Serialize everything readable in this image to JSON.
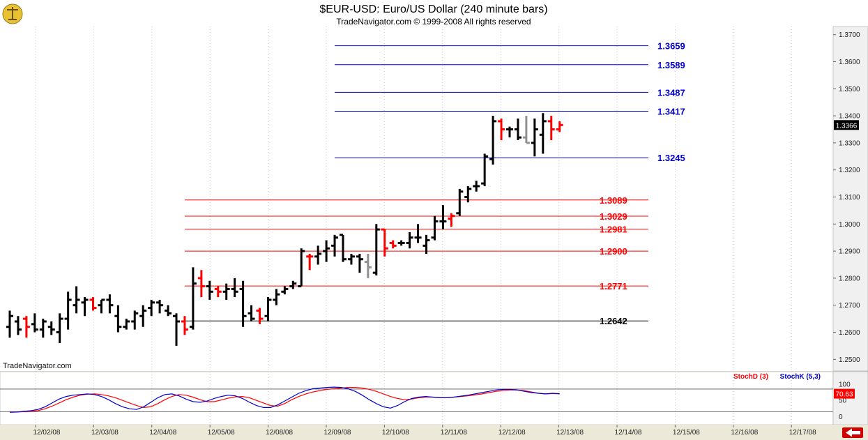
{
  "header": {
    "title": "$EUR-USD:  Euro/US Dollar  (240 minute bars)",
    "copyright": "TradeNavigator.com © 1999-2008 All rights reserved"
  },
  "watermark": "TradeNavigator.com",
  "icons": {
    "logo": "scales-logo-icon",
    "nav_arrow": "left-arrow-icon"
  },
  "colors": {
    "up_bar": "#000000",
    "down_bar": "#FF0000",
    "neutral_bar": "#909090",
    "blue_level": "#0000CC",
    "red_level": "#FF0000",
    "black_level": "#000000",
    "stochD": "#FF0000",
    "stochK": "#0000CC"
  },
  "chart_data": [
    {
      "type": "ohlc",
      "title": "$EUR-USD:  Euro/US Dollar  (240 minute bars)",
      "categories": [
        "12/02/08",
        "12/03/08",
        "12/04/08",
        "12/05/08",
        "12/08/08",
        "12/09/08",
        "12/10/08",
        "12/11/08",
        "12/12/08",
        "12/13/08",
        "12/14/08",
        "12/15/08",
        "12/16/08",
        "12/17/08"
      ],
      "ylim": [
        1.2475,
        1.3725
      ],
      "yticks": [
        "1.2500",
        "1.2600",
        "1.2700",
        "1.2800",
        "1.2900",
        "1.3000",
        "1.3100",
        "1.3200",
        "1.3300",
        "1.3400",
        "1.3500",
        "1.3600",
        "1.3700"
      ],
      "last_price": "1.3366",
      "bars": [
        {
          "o": 1.262,
          "h": 1.268,
          "l": 1.258,
          "c": 1.266,
          "col": "black"
        },
        {
          "o": 1.264,
          "h": 1.266,
          "l": 1.259,
          "c": 1.261,
          "col": "black"
        },
        {
          "o": 1.265,
          "h": 1.266,
          "l": 1.258,
          "c": 1.262,
          "col": "red"
        },
        {
          "o": 1.263,
          "h": 1.267,
          "l": 1.26,
          "c": 1.261,
          "col": "black"
        },
        {
          "o": 1.261,
          "h": 1.265,
          "l": 1.258,
          "c": 1.264,
          "col": "black"
        },
        {
          "o": 1.262,
          "h": 1.264,
          "l": 1.259,
          "c": 1.261,
          "col": "black"
        },
        {
          "o": 1.26,
          "h": 1.267,
          "l": 1.256,
          "c": 1.265,
          "col": "black"
        },
        {
          "o": 1.265,
          "h": 1.275,
          "l": 1.261,
          "c": 1.272,
          "col": "black"
        },
        {
          "o": 1.27,
          "h": 1.277,
          "l": 1.267,
          "c": 1.272,
          "col": "black"
        },
        {
          "o": 1.271,
          "h": 1.273,
          "l": 1.266,
          "c": 1.272,
          "col": "black"
        },
        {
          "o": 1.272,
          "h": 1.273,
          "l": 1.268,
          "c": 1.269,
          "col": "red"
        },
        {
          "o": 1.27,
          "h": 1.272,
          "l": 1.267,
          "c": 1.272,
          "col": "black"
        },
        {
          "o": 1.272,
          "h": 1.274,
          "l": 1.267,
          "c": 1.27,
          "col": "black"
        },
        {
          "o": 1.266,
          "h": 1.27,
          "l": 1.26,
          "c": 1.262,
          "col": "black"
        },
        {
          "o": 1.262,
          "h": 1.265,
          "l": 1.261,
          "c": 1.264,
          "col": "black"
        },
        {
          "o": 1.264,
          "h": 1.268,
          "l": 1.261,
          "c": 1.267,
          "col": "black"
        },
        {
          "o": 1.266,
          "h": 1.27,
          "l": 1.262,
          "c": 1.268,
          "col": "black"
        },
        {
          "o": 1.269,
          "h": 1.272,
          "l": 1.266,
          "c": 1.271,
          "col": "black"
        },
        {
          "o": 1.271,
          "h": 1.272,
          "l": 1.267,
          "c": 1.27,
          "col": "black"
        },
        {
          "o": 1.268,
          "h": 1.27,
          "l": 1.266,
          "c": 1.267,
          "col": "black"
        },
        {
          "o": 1.266,
          "h": 1.267,
          "l": 1.255,
          "c": 1.264,
          "col": "black"
        },
        {
          "o": 1.264,
          "h": 1.266,
          "l": 1.259,
          "c": 1.261,
          "col": "red"
        },
        {
          "o": 1.262,
          "h": 1.284,
          "l": 1.261,
          "c": 1.278,
          "col": "black"
        },
        {
          "o": 1.28,
          "h": 1.283,
          "l": 1.273,
          "c": 1.277,
          "col": "red"
        },
        {
          "o": 1.277,
          "h": 1.279,
          "l": 1.272,
          "c": 1.275,
          "col": "black"
        },
        {
          "o": 1.276,
          "h": 1.277,
          "l": 1.273,
          "c": 1.275,
          "col": "red"
        },
        {
          "o": 1.275,
          "h": 1.278,
          "l": 1.272,
          "c": 1.276,
          "col": "black"
        },
        {
          "o": 1.276,
          "h": 1.28,
          "l": 1.273,
          "c": 1.275,
          "col": "black"
        },
        {
          "o": 1.276,
          "h": 1.279,
          "l": 1.262,
          "c": 1.266,
          "col": "black"
        },
        {
          "o": 1.267,
          "h": 1.27,
          "l": 1.264,
          "c": 1.265,
          "col": "black"
        },
        {
          "o": 1.268,
          "h": 1.269,
          "l": 1.263,
          "c": 1.265,
          "col": "red"
        },
        {
          "o": 1.266,
          "h": 1.273,
          "l": 1.264,
          "c": 1.272,
          "col": "black"
        },
        {
          "o": 1.272,
          "h": 1.276,
          "l": 1.27,
          "c": 1.274,
          "col": "black"
        },
        {
          "o": 1.275,
          "h": 1.277,
          "l": 1.274,
          "c": 1.276,
          "col": "black"
        },
        {
          "o": 1.277,
          "h": 1.279,
          "l": 1.276,
          "c": 1.278,
          "col": "black"
        },
        {
          "o": 1.277,
          "h": 1.291,
          "l": 1.277,
          "c": 1.29,
          "col": "black"
        },
        {
          "o": 1.288,
          "h": 1.289,
          "l": 1.283,
          "c": 1.288,
          "col": "red"
        },
        {
          "o": 1.288,
          "h": 1.292,
          "l": 1.285,
          "c": 1.289,
          "col": "black"
        },
        {
          "o": 1.29,
          "h": 1.294,
          "l": 1.286,
          "c": 1.291,
          "col": "black"
        },
        {
          "o": 1.292,
          "h": 1.296,
          "l": 1.288,
          "c": 1.295,
          "col": "black"
        },
        {
          "o": 1.296,
          "h": 1.296,
          "l": 1.286,
          "c": 1.287,
          "col": "black"
        },
        {
          "o": 1.287,
          "h": 1.289,
          "l": 1.285,
          "c": 1.288,
          "col": "black"
        },
        {
          "o": 1.288,
          "h": 1.289,
          "l": 1.282,
          "c": 1.287,
          "col": "black"
        },
        {
          "o": 1.286,
          "h": 1.289,
          "l": 1.28,
          "c": 1.284,
          "col": "gray"
        },
        {
          "o": 1.282,
          "h": 1.3,
          "l": 1.281,
          "c": 1.298,
          "col": "black"
        },
        {
          "o": 1.298,
          "h": 1.298,
          "l": 1.288,
          "c": 1.291,
          "col": "red"
        },
        {
          "o": 1.293,
          "h": 1.294,
          "l": 1.291,
          "c": 1.292,
          "col": "red"
        },
        {
          "o": 1.293,
          "h": 1.294,
          "l": 1.292,
          "c": 1.293,
          "col": "black"
        },
        {
          "o": 1.293,
          "h": 1.297,
          "l": 1.291,
          "c": 1.295,
          "col": "black"
        },
        {
          "o": 1.295,
          "h": 1.3,
          "l": 1.293,
          "c": 1.295,
          "col": "black"
        },
        {
          "o": 1.292,
          "h": 1.296,
          "l": 1.289,
          "c": 1.294,
          "col": "black"
        },
        {
          "o": 1.295,
          "h": 1.303,
          "l": 1.294,
          "c": 1.301,
          "col": "black"
        },
        {
          "o": 1.301,
          "h": 1.307,
          "l": 1.298,
          "c": 1.301,
          "col": "black"
        },
        {
          "o": 1.302,
          "h": 1.304,
          "l": 1.299,
          "c": 1.303,
          "col": "red"
        },
        {
          "o": 1.304,
          "h": 1.313,
          "l": 1.303,
          "c": 1.312,
          "col": "black"
        },
        {
          "o": 1.31,
          "h": 1.314,
          "l": 1.308,
          "c": 1.313,
          "col": "black"
        },
        {
          "o": 1.314,
          "h": 1.316,
          "l": 1.312,
          "c": 1.314,
          "col": "black"
        },
        {
          "o": 1.315,
          "h": 1.326,
          "l": 1.314,
          "c": 1.325,
          "col": "black"
        },
        {
          "o": 1.324,
          "h": 1.34,
          "l": 1.322,
          "c": 1.338,
          "col": "black"
        },
        {
          "o": 1.338,
          "h": 1.339,
          "l": 1.331,
          "c": 1.335,
          "col": "red"
        },
        {
          "o": 1.335,
          "h": 1.336,
          "l": 1.332,
          "c": 1.335,
          "col": "black"
        },
        {
          "o": 1.335,
          "h": 1.339,
          "l": 1.331,
          "c": 1.332,
          "col": "black"
        },
        {
          "o": 1.332,
          "h": 1.34,
          "l": 1.33,
          "c": 1.33,
          "col": "gray"
        },
        {
          "o": 1.33,
          "h": 1.339,
          "l": 1.325,
          "c": 1.335,
          "col": "black"
        },
        {
          "o": 1.333,
          "h": 1.341,
          "l": 1.326,
          "c": 1.338,
          "col": "black"
        },
        {
          "o": 1.338,
          "h": 1.34,
          "l": 1.331,
          "c": 1.335,
          "col": "red"
        },
        {
          "o": 1.335,
          "h": 1.338,
          "l": 1.334,
          "c": 1.3366,
          "col": "red"
        }
      ],
      "levels": [
        {
          "label": "1.3659",
          "value": 1.3659,
          "color": "blue",
          "start_bar": 40
        },
        {
          "label": "1.3589",
          "value": 1.3589,
          "color": "blue",
          "start_bar": 40
        },
        {
          "label": "1.3487",
          "value": 1.3487,
          "color": "blue",
          "start_bar": 40
        },
        {
          "label": "1.3417",
          "value": 1.3417,
          "color": "blue",
          "start_bar": 40
        },
        {
          "label": "1.3245",
          "value": 1.3245,
          "color": "blue",
          "start_bar": 40
        },
        {
          "label": "1.3089",
          "value": 1.3089,
          "color": "red",
          "start_bar": 22
        },
        {
          "label": "1.3029",
          "value": 1.3029,
          "color": "red",
          "start_bar": 22
        },
        {
          "label": "1.2981",
          "value": 1.2981,
          "color": "red",
          "start_bar": 22
        },
        {
          "label": "1.2900",
          "value": 1.29,
          "color": "red",
          "start_bar": 22
        },
        {
          "label": "1.2771",
          "value": 1.2771,
          "color": "red",
          "start_bar": 22
        },
        {
          "label": "1.2642",
          "value": 1.2642,
          "color": "black",
          "start_bar": 22
        }
      ]
    },
    {
      "type": "line",
      "title": "Stochastic",
      "ylim": [
        -10,
        115
      ],
      "yticks": [
        "100",
        "50",
        "0"
      ],
      "reference_lines": [
        85,
        15
      ],
      "last_value": "70.63",
      "series": [
        {
          "name": "StochD (3)",
          "color": "red",
          "values": [
            14,
            14,
            15,
            16,
            18,
            24,
            32,
            42,
            52,
            60,
            66,
            69,
            70,
            68,
            64,
            58,
            50,
            42,
            34,
            28,
            30,
            40,
            52,
            62,
            68,
            66,
            60,
            52,
            46,
            46,
            51,
            57,
            61,
            62,
            58,
            50,
            42,
            34,
            32,
            40,
            52,
            62,
            70,
            76,
            80,
            84,
            86,
            88,
            90,
            90,
            88,
            84,
            78,
            70,
            62,
            56,
            52,
            54,
            58,
            60,
            60,
            58,
            58,
            60,
            62,
            64,
            67,
            70,
            74,
            78,
            80,
            82,
            82,
            80,
            76,
            72,
            70,
            71,
            70
          ]
        },
        {
          "name": "StochK (5,3)",
          "color": "blue",
          "values": [
            13,
            14,
            16,
            18,
            22,
            30,
            42,
            54,
            62,
            66,
            68,
            70,
            68,
            62,
            52,
            40,
            30,
            24,
            22,
            30,
            44,
            58,
            68,
            70,
            64,
            54,
            46,
            44,
            48,
            56,
            62,
            66,
            64,
            56,
            44,
            34,
            28,
            28,
            36,
            48,
            60,
            72,
            80,
            86,
            88,
            90,
            91,
            90,
            86,
            78,
            66,
            52,
            40,
            30,
            26,
            34,
            46,
            56,
            60,
            62,
            60,
            58,
            58,
            60,
            63,
            66,
            70,
            74,
            78,
            82,
            84,
            84,
            82,
            78,
            74,
            72,
            70,
            72,
            70.63
          ]
        }
      ]
    }
  ]
}
